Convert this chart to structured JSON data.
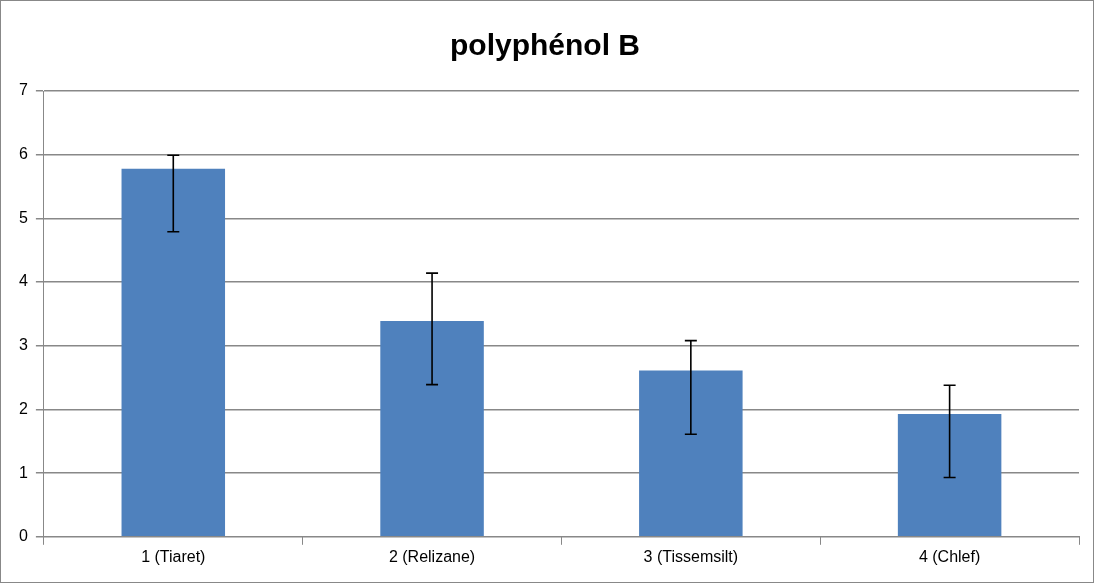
{
  "chart_data": {
    "type": "bar",
    "title": "polyphénol B",
    "categories": [
      "1 (Tiaret)",
      "2 (Relizane)",
      "3 (Tissemsilt)",
      "4 (Chlef)"
    ],
    "values": [
      5.78,
      3.39,
      2.61,
      1.93
    ],
    "color": "#4f81bd",
    "errors": [
      [
        4.79,
        5.99
      ],
      [
        2.39,
        4.14
      ],
      [
        1.61,
        3.08
      ],
      [
        0.93,
        2.38
      ]
    ],
    "ylim": [
      0,
      7
    ],
    "yticks": [
      0,
      1,
      2,
      3,
      4,
      5,
      6,
      7
    ],
    "grid": "y",
    "legend": false
  }
}
